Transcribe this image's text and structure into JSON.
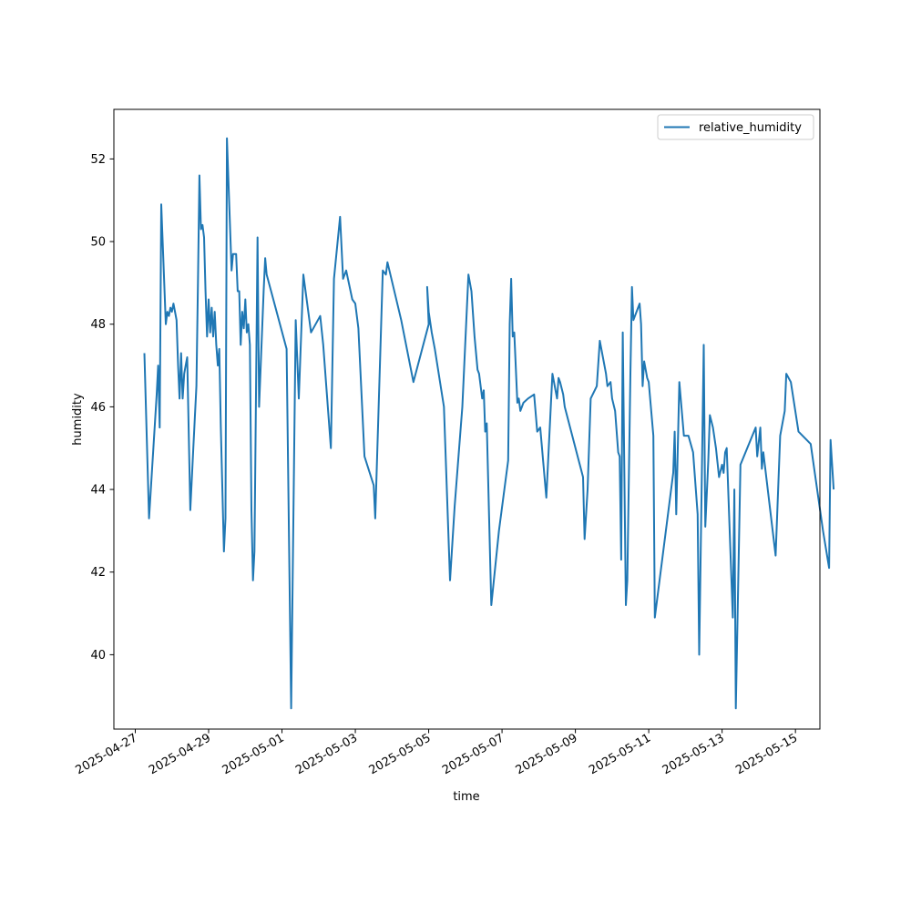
{
  "chart_data": {
    "type": "line",
    "title": "",
    "xlabel": "time",
    "ylabel": "humidity",
    "x_axis_type": "date",
    "xlim": [
      "2025-04-26 10:00",
      "2025-05-15 16:00"
    ],
    "ylim": [
      38.2,
      53.2
    ],
    "x_ticks": [
      "2025-04-27",
      "2025-04-29",
      "2025-05-01",
      "2025-05-03",
      "2025-05-05",
      "2025-05-07",
      "2025-05-09",
      "2025-05-11",
      "2025-05-13",
      "2025-05-15"
    ],
    "y_ticks": [
      40,
      42,
      44,
      46,
      48,
      50,
      52
    ],
    "grid": false,
    "legend_position": "upper right",
    "line_color": "#1f77b4",
    "series": [
      {
        "name": "relative_humidity",
        "color": "#1f77b4",
        "points": [
          [
            "2025-04-27 06:00",
            47.3
          ],
          [
            "2025-04-27 09:00",
            43.3
          ],
          [
            "2025-04-27 14:00",
            46.3
          ],
          [
            "2025-04-27 15:00",
            47.0
          ],
          [
            "2025-04-27 16:00",
            45.5
          ],
          [
            "2025-04-27 17:00",
            50.9
          ],
          [
            "2025-04-27 20:00",
            48.0
          ],
          [
            "2025-04-27 21:00",
            48.3
          ],
          [
            "2025-04-27 22:00",
            48.2
          ],
          [
            "2025-04-27 23:00",
            48.4
          ],
          [
            "2025-04-28 00:00",
            48.3
          ],
          [
            "2025-04-28 01:00",
            48.5
          ],
          [
            "2025-04-28 02:00",
            48.3
          ],
          [
            "2025-04-28 03:00",
            48.1
          ],
          [
            "2025-04-28 04:00",
            47.0
          ],
          [
            "2025-04-28 05:00",
            46.2
          ],
          [
            "2025-04-28 06:00",
            47.3
          ],
          [
            "2025-04-28 07:00",
            46.2
          ],
          [
            "2025-04-28 08:00",
            46.8
          ],
          [
            "2025-04-28 09:00",
            47.0
          ],
          [
            "2025-04-28 10:00",
            47.2
          ],
          [
            "2025-04-28 12:00",
            43.5
          ],
          [
            "2025-04-28 14:00",
            45.0
          ],
          [
            "2025-04-28 16:00",
            46.5
          ],
          [
            "2025-04-28 17:00",
            49.0
          ],
          [
            "2025-04-28 18:00",
            51.6
          ],
          [
            "2025-04-28 19:00",
            50.3
          ],
          [
            "2025-04-28 20:00",
            50.4
          ],
          [
            "2025-04-28 21:00",
            50.1
          ],
          [
            "2025-04-28 22:00",
            48.8
          ],
          [
            "2025-04-28 23:00",
            47.7
          ],
          [
            "2025-04-29 00:00",
            48.6
          ],
          [
            "2025-04-29 01:00",
            47.8
          ],
          [
            "2025-04-29 02:00",
            48.4
          ],
          [
            "2025-04-29 03:00",
            47.7
          ],
          [
            "2025-04-29 04:00",
            48.3
          ],
          [
            "2025-04-29 05:00",
            47.5
          ],
          [
            "2025-04-29 06:00",
            47.0
          ],
          [
            "2025-04-29 07:00",
            47.4
          ],
          [
            "2025-04-29 08:00",
            45.5
          ],
          [
            "2025-04-29 10:00",
            42.5
          ],
          [
            "2025-04-29 11:00",
            43.3
          ],
          [
            "2025-04-29 12:00",
            52.5
          ],
          [
            "2025-04-29 15:00",
            49.3
          ],
          [
            "2025-04-29 16:00",
            49.7
          ],
          [
            "2025-04-29 18:00",
            49.7
          ],
          [
            "2025-04-29 19:00",
            48.8
          ],
          [
            "2025-04-29 20:00",
            48.8
          ],
          [
            "2025-04-29 21:00",
            47.5
          ],
          [
            "2025-04-29 22:00",
            48.3
          ],
          [
            "2025-04-29 23:00",
            47.9
          ],
          [
            "2025-04-30 00:00",
            48.6
          ],
          [
            "2025-04-30 01:00",
            47.8
          ],
          [
            "2025-04-30 02:00",
            48.0
          ],
          [
            "2025-04-30 03:00",
            47.5
          ],
          [
            "2025-04-30 04:00",
            43.5
          ],
          [
            "2025-04-30 05:00",
            41.8
          ],
          [
            "2025-04-30 06:00",
            42.5
          ],
          [
            "2025-04-30 08:00",
            50.1
          ],
          [
            "2025-04-30 09:00",
            46.0
          ],
          [
            "2025-04-30 12:00",
            48.8
          ],
          [
            "2025-04-30 13:00",
            49.6
          ],
          [
            "2025-04-30 14:00",
            49.2
          ],
          [
            "2025-05-01 03:00",
            47.4
          ],
          [
            "2025-05-01 06:00",
            38.7
          ],
          [
            "2025-05-01 09:00",
            48.1
          ],
          [
            "2025-05-01 11:00",
            46.2
          ],
          [
            "2025-05-01 14:00",
            49.2
          ],
          [
            "2025-05-01 19:00",
            47.8
          ],
          [
            "2025-05-02 01:00",
            48.2
          ],
          [
            "2025-05-02 03:00",
            47.5
          ],
          [
            "2025-05-02 08:00",
            45.0
          ],
          [
            "2025-05-02 10:00",
            49.1
          ],
          [
            "2025-05-02 14:00",
            50.6
          ],
          [
            "2025-05-02 16:00",
            49.1
          ],
          [
            "2025-05-02 18:00",
            49.3
          ],
          [
            "2025-05-02 22:00",
            48.6
          ],
          [
            "2025-05-03 00:00",
            48.5
          ],
          [
            "2025-05-03 02:00",
            47.9
          ],
          [
            "2025-05-03 06:00",
            44.8
          ],
          [
            "2025-05-03 12:00",
            44.1
          ],
          [
            "2025-05-03 13:00",
            43.3
          ],
          [
            "2025-05-03 18:00",
            49.3
          ],
          [
            "2025-05-03 20:00",
            49.2
          ],
          [
            "2025-05-03 21:00",
            49.5
          ],
          [
            "2025-05-04 06:00",
            48.1
          ],
          [
            "2025-05-04 14:00",
            46.6
          ],
          [
            "2025-05-05 00:00",
            48.0
          ],
          [
            "2025-05-04 23:00",
            48.9
          ],
          [
            "2025-05-05 00:00",
            48.3
          ],
          [
            "2025-05-05 02:00",
            47.8
          ],
          [
            "2025-05-05 04:00",
            47.4
          ],
          [
            "2025-05-05 10:00",
            46.0
          ],
          [
            "2025-05-05 14:00",
            41.8
          ],
          [
            "2025-05-05 17:00",
            43.6
          ],
          [
            "2025-05-05 22:00",
            46.0
          ],
          [
            "2025-05-06 02:00",
            49.2
          ],
          [
            "2025-05-06 04:00",
            48.8
          ],
          [
            "2025-05-06 06:00",
            47.7
          ],
          [
            "2025-05-06 08:00",
            46.9
          ],
          [
            "2025-05-06 09:00",
            46.8
          ],
          [
            "2025-05-06 11:00",
            46.2
          ],
          [
            "2025-05-06 12:00",
            46.4
          ],
          [
            "2025-05-06 13:00",
            45.4
          ],
          [
            "2025-05-06 14:00",
            45.6
          ],
          [
            "2025-05-06 17:00",
            41.2
          ],
          [
            "2025-05-06 22:00",
            43.0
          ],
          [
            "2025-05-07 04:00",
            44.7
          ],
          [
            "2025-05-07 05:00",
            48.0
          ],
          [
            "2025-05-07 06:00",
            49.1
          ],
          [
            "2025-05-07 07:00",
            47.7
          ],
          [
            "2025-05-07 08:00",
            47.8
          ],
          [
            "2025-05-07 10:00",
            46.1
          ],
          [
            "2025-05-07 11:00",
            46.2
          ],
          [
            "2025-05-07 12:00",
            45.9
          ],
          [
            "2025-05-07 14:00",
            46.1
          ],
          [
            "2025-05-07 17:00",
            46.2
          ],
          [
            "2025-05-07 21:00",
            46.3
          ],
          [
            "2025-05-07 23:00",
            45.4
          ],
          [
            "2025-05-08 01:00",
            45.5
          ],
          [
            "2025-05-08 05:00",
            43.8
          ],
          [
            "2025-05-08 08:00",
            46.1
          ],
          [
            "2025-05-08 09:00",
            46.8
          ],
          [
            "2025-05-08 11:00",
            46.4
          ],
          [
            "2025-05-08 12:00",
            46.2
          ],
          [
            "2025-05-08 13:00",
            46.7
          ],
          [
            "2025-05-08 14:00",
            46.6
          ],
          [
            "2025-05-08 16:00",
            46.3
          ],
          [
            "2025-05-08 17:00",
            46.0
          ],
          [
            "2025-05-09 05:00",
            44.3
          ],
          [
            "2025-05-09 06:00",
            42.8
          ],
          [
            "2025-05-09 08:00",
            44.0
          ],
          [
            "2025-05-09 10:00",
            46.2
          ],
          [
            "2025-05-09 14:00",
            46.5
          ],
          [
            "2025-05-09 16:00",
            47.6
          ],
          [
            "2025-05-09 20:00",
            46.8
          ],
          [
            "2025-05-09 21:00",
            46.5
          ],
          [
            "2025-05-09 23:00",
            46.6
          ],
          [
            "2025-05-10 00:00",
            46.2
          ],
          [
            "2025-05-10 02:00",
            45.9
          ],
          [
            "2025-05-10 04:00",
            44.9
          ],
          [
            "2025-05-10 05:00",
            44.8
          ],
          [
            "2025-05-10 06:00",
            42.3
          ],
          [
            "2025-05-10 07:00",
            47.8
          ],
          [
            "2025-05-10 09:00",
            41.2
          ],
          [
            "2025-05-10 10:00",
            41.8
          ],
          [
            "2025-05-10 12:00",
            46.8
          ],
          [
            "2025-05-10 13:00",
            48.9
          ],
          [
            "2025-05-10 14:00",
            48.1
          ],
          [
            "2025-05-10 18:00",
            48.5
          ],
          [
            "2025-05-10 19:00",
            48.0
          ],
          [
            "2025-05-10 20:00",
            46.5
          ],
          [
            "2025-05-10 21:00",
            47.1
          ],
          [
            "2025-05-10 23:00",
            46.7
          ],
          [
            "2025-05-11 00:00",
            46.6
          ],
          [
            "2025-05-11 03:00",
            45.3
          ],
          [
            "2025-05-11 04:00",
            40.9
          ],
          [
            "2025-05-11 16:00",
            44.4
          ],
          [
            "2025-05-11 17:00",
            45.4
          ],
          [
            "2025-05-11 18:00",
            43.4
          ],
          [
            "2025-05-11 20:00",
            46.6
          ],
          [
            "2025-05-11 23:00",
            45.3
          ],
          [
            "2025-05-12 02:00",
            45.3
          ],
          [
            "2025-05-12 05:00",
            44.9
          ],
          [
            "2025-05-12 08:00",
            43.4
          ],
          [
            "2025-05-12 09:00",
            40.0
          ],
          [
            "2025-05-12 12:00",
            47.5
          ],
          [
            "2025-05-12 13:00",
            43.1
          ],
          [
            "2025-05-12 15:00",
            44.7
          ],
          [
            "2025-05-12 16:00",
            45.8
          ],
          [
            "2025-05-12 18:00",
            45.5
          ],
          [
            "2025-05-12 20:00",
            45.0
          ],
          [
            "2025-05-12 22:00",
            44.3
          ],
          [
            "2025-05-13 00:00",
            44.6
          ],
          [
            "2025-05-13 01:00",
            44.4
          ],
          [
            "2025-05-13 02:00",
            44.9
          ],
          [
            "2025-05-13 03:00",
            45.0
          ],
          [
            "2025-05-13 07:00",
            40.9
          ],
          [
            "2025-05-13 08:00",
            44.0
          ],
          [
            "2025-05-13 09:00",
            38.7
          ],
          [
            "2025-05-13 12:00",
            44.6
          ],
          [
            "2025-05-13 22:00",
            45.5
          ],
          [
            "2025-05-13 23:00",
            44.8
          ],
          [
            "2025-05-14 01:00",
            45.5
          ],
          [
            "2025-05-14 02:00",
            44.5
          ],
          [
            "2025-05-14 03:00",
            44.9
          ],
          [
            "2025-05-14 11:00",
            42.4
          ],
          [
            "2025-05-14 14:00",
            45.3
          ],
          [
            "2025-05-14 17:00",
            45.9
          ],
          [
            "2025-05-14 18:00",
            46.8
          ],
          [
            "2025-05-14 21:00",
            46.6
          ],
          [
            "2025-05-15 02:00",
            45.4
          ],
          [
            "2025-05-15 10:00",
            45.1
          ],
          [
            "2025-05-15 18:00",
            43.0
          ],
          [
            "2025-05-15 22:00",
            42.1
          ],
          [
            "2025-05-15 23:00",
            45.2
          ],
          [
            "2025-05-16 01:00",
            44.0
          ]
        ]
      }
    ],
    "legend": {
      "entries": [
        "relative_humidity"
      ]
    }
  }
}
